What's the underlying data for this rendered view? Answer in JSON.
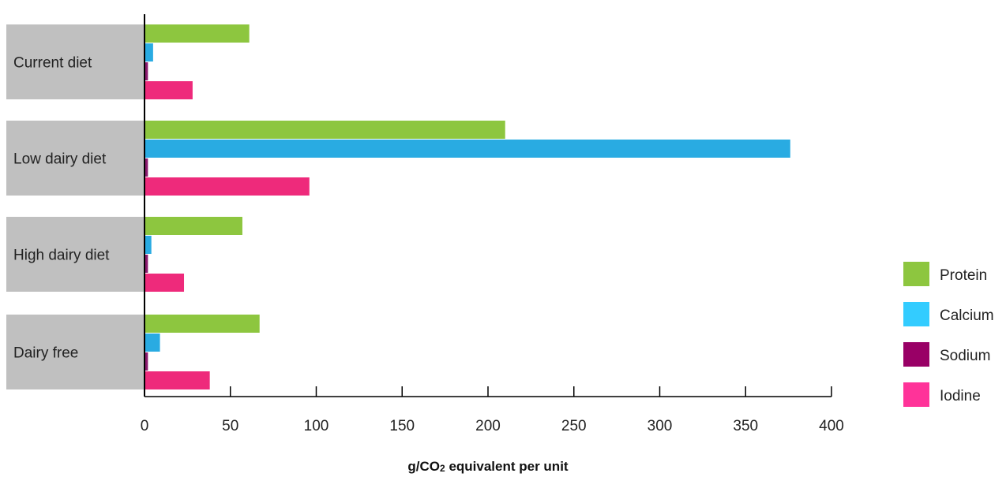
{
  "chart_data": {
    "type": "bar",
    "orientation": "horizontal",
    "categories": [
      "Current diet",
      "Low dairy diet",
      "High dairy diet",
      "Dairy free"
    ],
    "series": [
      {
        "name": "Protein",
        "values": [
          61,
          210,
          57,
          67
        ],
        "color": "#8dc63f"
      },
      {
        "name": "Calcium",
        "values": [
          5,
          376,
          4,
          9
        ],
        "color": "#29abe2"
      },
      {
        "name": "Sodium",
        "values": [
          2,
          2,
          2,
          2
        ],
        "color": "#8b1a6e"
      },
      {
        "name": "Iodine",
        "values": [
          28,
          96,
          23,
          38
        ],
        "color": "#ee2a7b"
      }
    ],
    "legend": [
      {
        "name": "Protein",
        "color": "#8dc63f"
      },
      {
        "name": "Calcium",
        "color": "#33ccff"
      },
      {
        "name": "Sodium",
        "color": "#990066"
      },
      {
        "name": "Iodine",
        "color": "#ff3399"
      }
    ],
    "x_ticks": [
      "0",
      "50",
      "100",
      "150",
      "200",
      "250",
      "300",
      "350",
      "400"
    ],
    "xlim": [
      0,
      400
    ],
    "xlabel_main": "g/CO",
    "xlabel_sub": "2",
    "xlabel_tail": " equivalent per unit",
    "legend_position": "right",
    "grid": false,
    "category_label_bg": "#c0c0c0"
  }
}
